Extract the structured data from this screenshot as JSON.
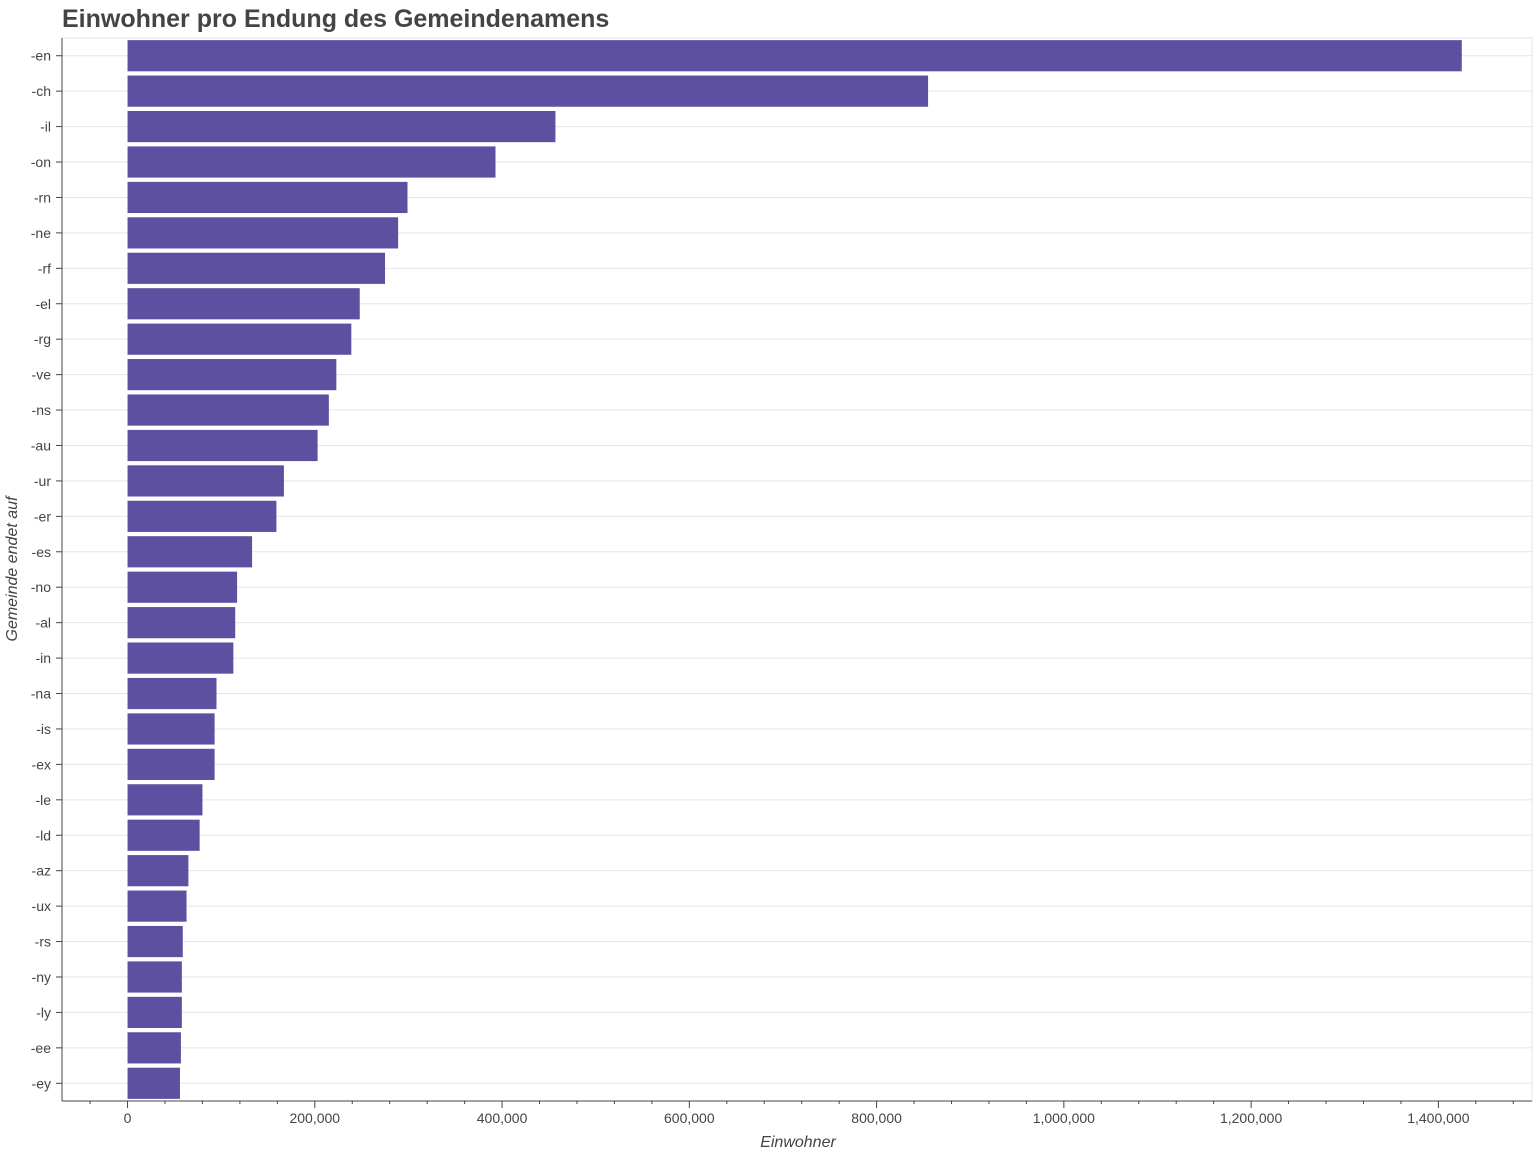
{
  "chart_data": {
    "type": "bar",
    "orientation": "horizontal",
    "title": "Einwohner pro Endung des Gemeindenamens",
    "xlabel": "Einwohner",
    "ylabel": "Gemeinde endet auf",
    "xlim": [
      -70000,
      1500000
    ],
    "xticks": [
      0,
      200000,
      400000,
      600000,
      800000,
      1000000,
      1200000,
      1400000
    ],
    "xtick_labels": [
      "0",
      "200,000",
      "400,000",
      "600,000",
      "800,000",
      "1,000,000",
      "1,200,000",
      "1,400,000"
    ],
    "grid": true,
    "bar_color": "#5e50a1",
    "categories": [
      "-en",
      "-ch",
      "-il",
      "-on",
      "-rn",
      "-ne",
      "-rf",
      "-el",
      "-rg",
      "-ve",
      "-ns",
      "-au",
      "-ur",
      "-er",
      "-es",
      "-no",
      "-al",
      "-in",
      "-na",
      "-is",
      "-ex",
      "-le",
      "-ld",
      "-az",
      "-ux",
      "-rs",
      "-ny",
      "-ly",
      "-ee",
      "-ey"
    ],
    "values": [
      1425000,
      855000,
      457000,
      393000,
      299000,
      289000,
      275000,
      248000,
      239000,
      223000,
      215000,
      203000,
      167000,
      159000,
      133000,
      117000,
      115000,
      113000,
      95000,
      93000,
      93000,
      80000,
      77000,
      65000,
      63000,
      59000,
      58000,
      58000,
      57000,
      56000
    ]
  }
}
